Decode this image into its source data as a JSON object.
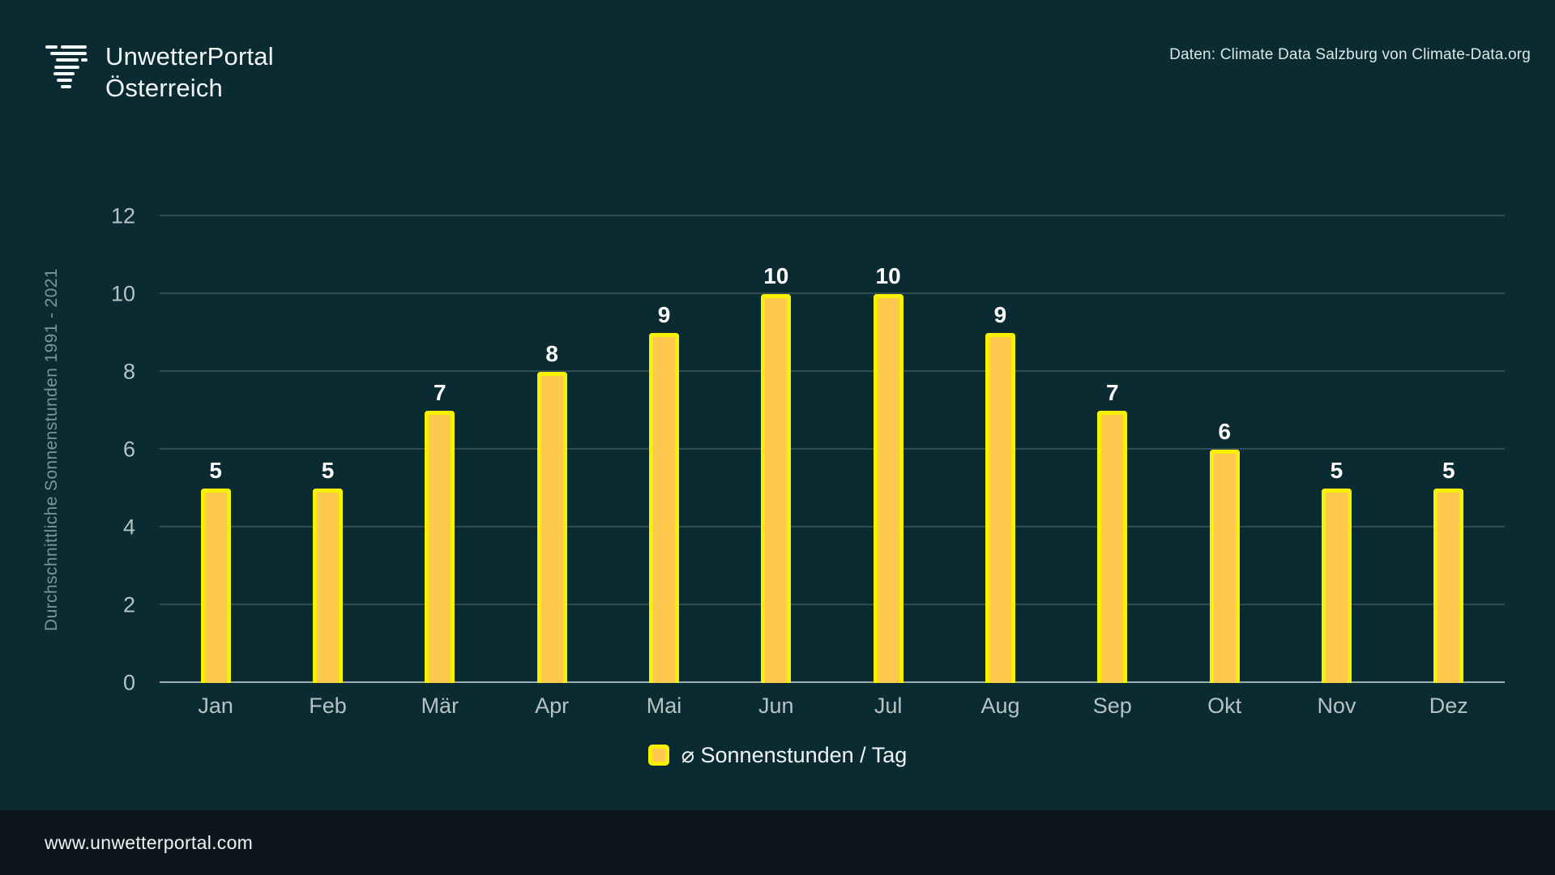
{
  "header": {
    "brand_line1": "UnwetterPortal",
    "brand_line2": "Österreich",
    "source_note": "Daten: Climate Data Salzburg von Climate-Data.org"
  },
  "chart_data": {
    "type": "bar",
    "categories": [
      "Jan",
      "Feb",
      "Mär",
      "Apr",
      "Mai",
      "Jun",
      "Jul",
      "Aug",
      "Sep",
      "Okt",
      "Nov",
      "Dez"
    ],
    "values": [
      5,
      5,
      7,
      8,
      9,
      10,
      10,
      9,
      7,
      6,
      5,
      5
    ],
    "title": "",
    "xlabel": "",
    "ylabel": "Durchschnittliche Sonnenstunden 1991 - 2021",
    "ylim": [
      0,
      12
    ],
    "yticks": [
      0,
      2,
      4,
      6,
      8,
      10,
      12
    ],
    "grid": true,
    "legend": "⌀ Sonnenstunden / Tag",
    "legend_position": "bottom",
    "value_labels": true
  },
  "colors": {
    "background": "#0b2b32",
    "footer_background": "#0c161c",
    "bar_fill": "#fcc84e",
    "bar_border": "#f7f000",
    "gridline": "rgba(255,255,255,0.16)",
    "axis_line": "#9fadb0",
    "text_primary": "#ffffff",
    "text_muted": "#b7c2c3"
  },
  "footer": {
    "url": "www.unwetterportal.com"
  }
}
